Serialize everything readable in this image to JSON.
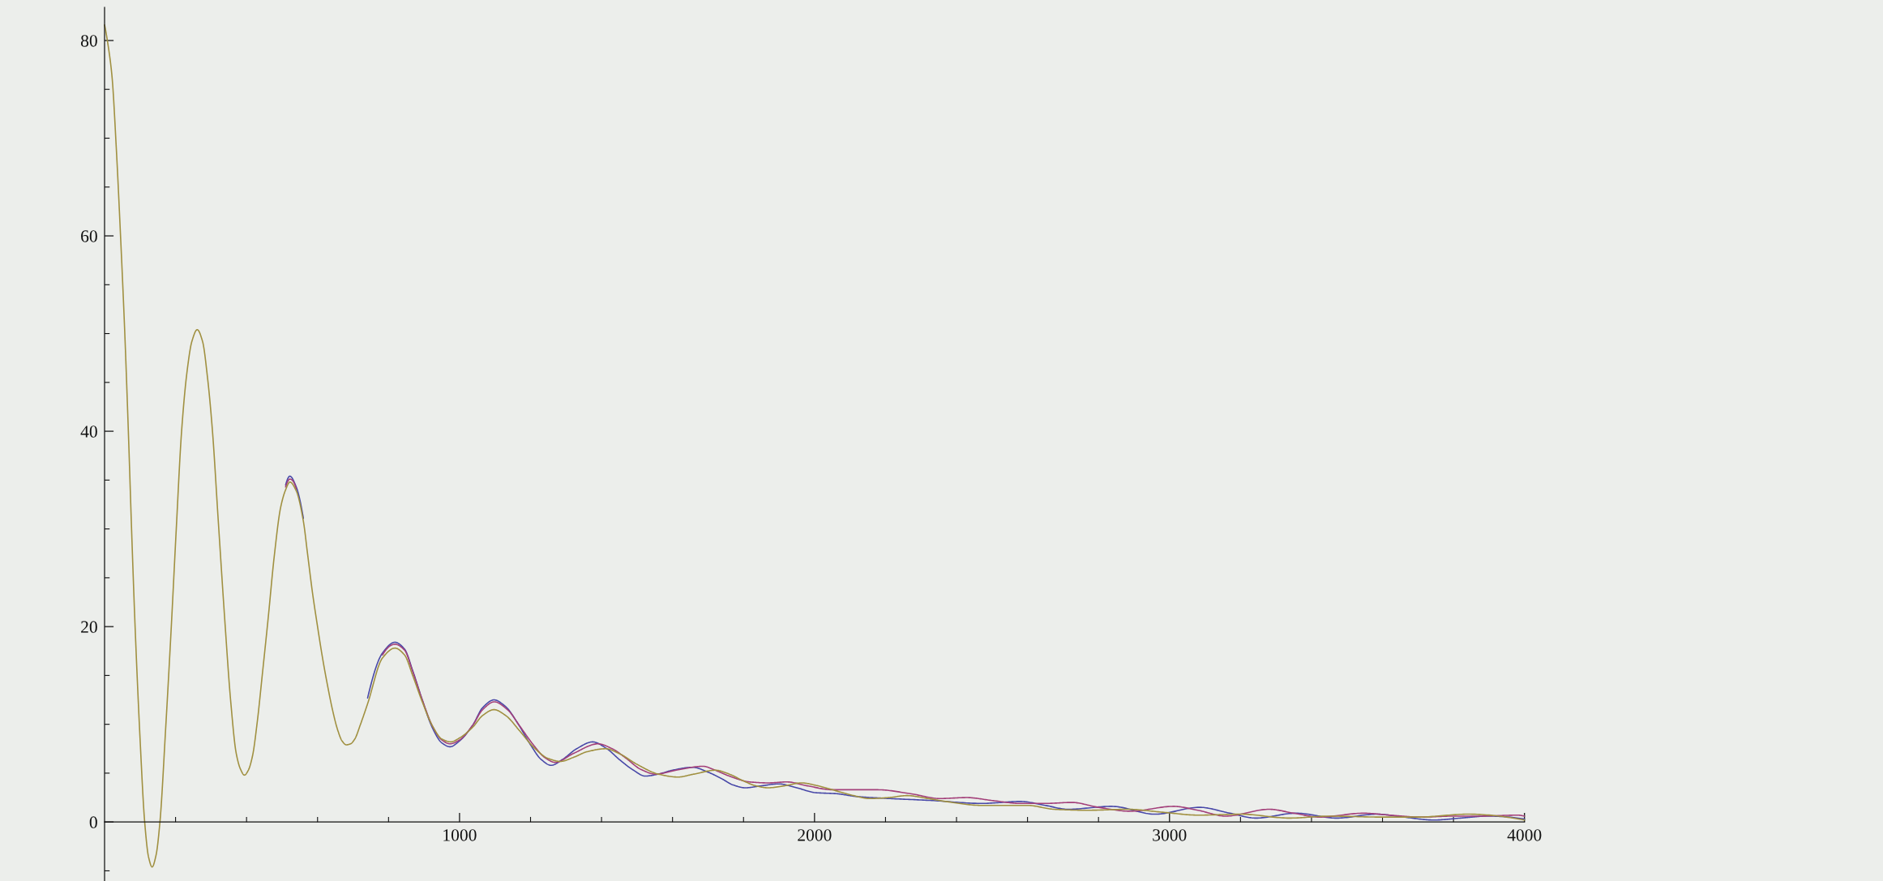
{
  "chart_data": {
    "type": "line",
    "line_style": "solid",
    "xlim": [
      0,
      4000
    ],
    "ylim": [
      -6,
      83.4
    ],
    "xticks": [
      {
        "value": 200,
        "label": null
      },
      {
        "value": 400,
        "label": null
      },
      {
        "value": 600,
        "label": null
      },
      {
        "value": 800,
        "label": null
      },
      1000,
      {
        "value": 1200,
        "label": null
      },
      {
        "value": 1400,
        "label": null
      },
      {
        "value": 1600,
        "label": null
      },
      {
        "value": 1800,
        "label": null
      },
      2000,
      {
        "value": 2200,
        "label": null
      },
      {
        "value": 2400,
        "label": null
      },
      {
        "value": 2600,
        "label": null
      },
      {
        "value": 2800,
        "label": null
      },
      3000,
      {
        "value": 3200,
        "label": null
      },
      {
        "value": 3400,
        "label": null
      },
      {
        "value": 3600,
        "label": null
      },
      {
        "value": 3800,
        "label": null
      },
      4000
    ],
    "yticks": [
      {
        "value": -5,
        "label": null
      },
      0,
      {
        "value": 5,
        "label": null
      },
      {
        "value": 10,
        "label": null
      },
      {
        "value": 15,
        "label": null
      },
      20,
      {
        "value": 25,
        "label": null
      },
      {
        "value": 30,
        "label": null
      },
      {
        "value": 35,
        "label": null
      },
      40,
      {
        "value": 45,
        "label": null
      },
      {
        "value": 50,
        "label": null
      },
      {
        "value": 55,
        "label": null
      },
      60,
      {
        "value": 65,
        "label": null
      },
      {
        "value": 70,
        "label": null
      },
      {
        "value": 75,
        "label": null
      },
      80
    ],
    "series": [
      {
        "color": "#4848a8",
        "x": [
          510,
          522,
          540,
          560,
          600,
          741,
          783,
          818,
          845,
          868,
          895,
          924,
          950,
          973,
          1000,
          1037,
          1065,
          1097,
          1130,
          1164,
          1200,
          1230,
          1258,
          1290,
          1330,
          1375,
          1415,
          1450,
          1490,
          1523,
          1560,
          1600,
          1657,
          1700,
          1740,
          1770,
          1805,
          1850,
          1899,
          1950,
          2003,
          2060,
          2120,
          2213,
          2330,
          2470,
          2580,
          2650,
          2714,
          2837,
          2959,
          3085,
          3170,
          3243,
          3357,
          3471,
          3584,
          3660,
          3745,
          3820,
          3897,
          4000
        ],
        "values": [
          34.5,
          35.4,
          34.3,
          31.1,
          null,
          12.7,
          17.3,
          18.4,
          17.7,
          15.5,
          12.5,
          9.6,
          8.1,
          7.7,
          8.3,
          9.9,
          11.7,
          12.5,
          11.8,
          10.1,
          7.9,
          6.4,
          5.8,
          6.4,
          7.5,
          8.2,
          7.5,
          6.4,
          5.3,
          4.7,
          4.9,
          5.3,
          5.6,
          5.1,
          4.4,
          3.8,
          3.5,
          3.7,
          3.9,
          3.5,
          3.0,
          2.9,
          2.6,
          2.4,
          2.2,
          1.9,
          2.1,
          1.7,
          1.3,
          1.6,
          0.8,
          1.5,
          0.9,
          0.4,
          0.9,
          0.4,
          0.8,
          0.5,
          0.2,
          0.4,
          0.6,
          0.3
        ]
      },
      {
        "color": "#a3407a",
        "x": [
          510,
          522,
          540,
          600,
          783,
          818,
          845,
          868,
          895,
          924,
          950,
          973,
          1000,
          1037,
          1065,
          1098,
          1135,
          1170,
          1210,
          1240,
          1270,
          1320,
          1390,
          1430,
          1470,
          1510,
          1552,
          1610,
          1686,
          1720,
          1760,
          1817,
          1870,
          1922,
          1980,
          2050,
          2110,
          2178,
          2270,
          2353,
          2429,
          2500,
          2580,
          2650,
          2725,
          2800,
          2890,
          3011,
          3080,
          3158,
          3281,
          3350,
          3423,
          3546,
          3620,
          3707,
          3800,
          3870,
          3982,
          4000
        ],
        "values": [
          34.3,
          35.1,
          34.1,
          null,
          17.1,
          18.2,
          17.6,
          15.4,
          12.5,
          9.8,
          8.4,
          8.0,
          8.4,
          9.9,
          11.5,
          12.3,
          11.5,
          9.8,
          7.8,
          6.6,
          6.1,
          7.0,
          8.0,
          7.5,
          6.5,
          5.4,
          4.9,
          5.3,
          5.7,
          5.3,
          4.7,
          4.1,
          4.0,
          4.1,
          3.7,
          3.3,
          3.3,
          3.3,
          2.9,
          2.4,
          2.5,
          2.2,
          1.9,
          1.9,
          2.0,
          1.5,
          1.1,
          1.6,
          1.2,
          0.6,
          1.3,
          0.9,
          0.5,
          0.9,
          0.7,
          0.5,
          0.6,
          0.6,
          0.7,
          0.6
        ]
      },
      {
        "color": "#a09040",
        "x": [
          0,
          10,
          21,
          33,
          45,
          57,
          67,
          77,
          86,
          100,
          113,
          124,
          134,
          145,
          156,
          172,
          188,
          202,
          217,
          232,
          246,
          261,
          276,
          290,
          304,
          320,
          339,
          355,
          371,
          383,
          394,
          405,
          417,
          430,
          445,
          461,
          478,
          496,
          510,
          522,
          540,
          560,
          572,
          586,
          600,
          614,
          628,
          642,
          656,
          669,
          681,
          693,
          705,
          721,
          741,
          783,
          818,
          845,
          868,
          895,
          924,
          950,
          975,
          1000,
          1037,
          1065,
          1097,
          1130,
          1170,
          1210,
          1250,
          1284,
          1320,
          1360,
          1411,
          1450,
          1500,
          1560,
          1615,
          1660,
          1721,
          1760,
          1800,
          1835,
          1869,
          1915,
          1963,
          2010,
          2060,
          2110,
          2155,
          2210,
          2260,
          2320,
          2370,
          2470,
          2600,
          2675,
          2770,
          2883,
          2980,
          3082,
          3200,
          3338,
          3450,
          3600,
          3700,
          3840,
          4000
        ],
        "values": [
          81.6,
          79.5,
          76.3,
          69,
          60,
          50,
          40,
          29,
          20,
          8.5,
          0,
          -3.6,
          -4.6,
          -3.4,
          0,
          9.5,
          20,
          30,
          40,
          46,
          49.2,
          50.4,
          49.2,
          45.5,
          40,
          31,
          20.5,
          12.5,
          7.0,
          5.4,
          4.8,
          5.3,
          6.8,
          10.2,
          15.3,
          20.9,
          27.2,
          32.2,
          34.0,
          34.8,
          33.9,
          30.8,
          27.4,
          23.4,
          20.0,
          16.8,
          14.0,
          11.5,
          9.5,
          8.3,
          7.9,
          8.0,
          8.5,
          10.0,
          12.1,
          16.8,
          17.8,
          17.1,
          15.0,
          12.3,
          9.8,
          8.5,
          8.2,
          8.6,
          9.7,
          10.9,
          11.5,
          10.9,
          9.3,
          7.6,
          6.5,
          6.2,
          6.6,
          7.2,
          7.5,
          7.0,
          5.9,
          4.9,
          4.6,
          4.9,
          5.3,
          4.9,
          4.2,
          3.7,
          3.5,
          3.7,
          4.0,
          3.7,
          3.2,
          2.7,
          2.4,
          2.5,
          2.7,
          2.4,
          2.1,
          1.7,
          1.7,
          1.3,
          1.2,
          1.3,
          1.0,
          0.7,
          0.8,
          0.4,
          0.6,
          0.5,
          0.5,
          0.8,
          0.2
        ]
      }
    ]
  }
}
